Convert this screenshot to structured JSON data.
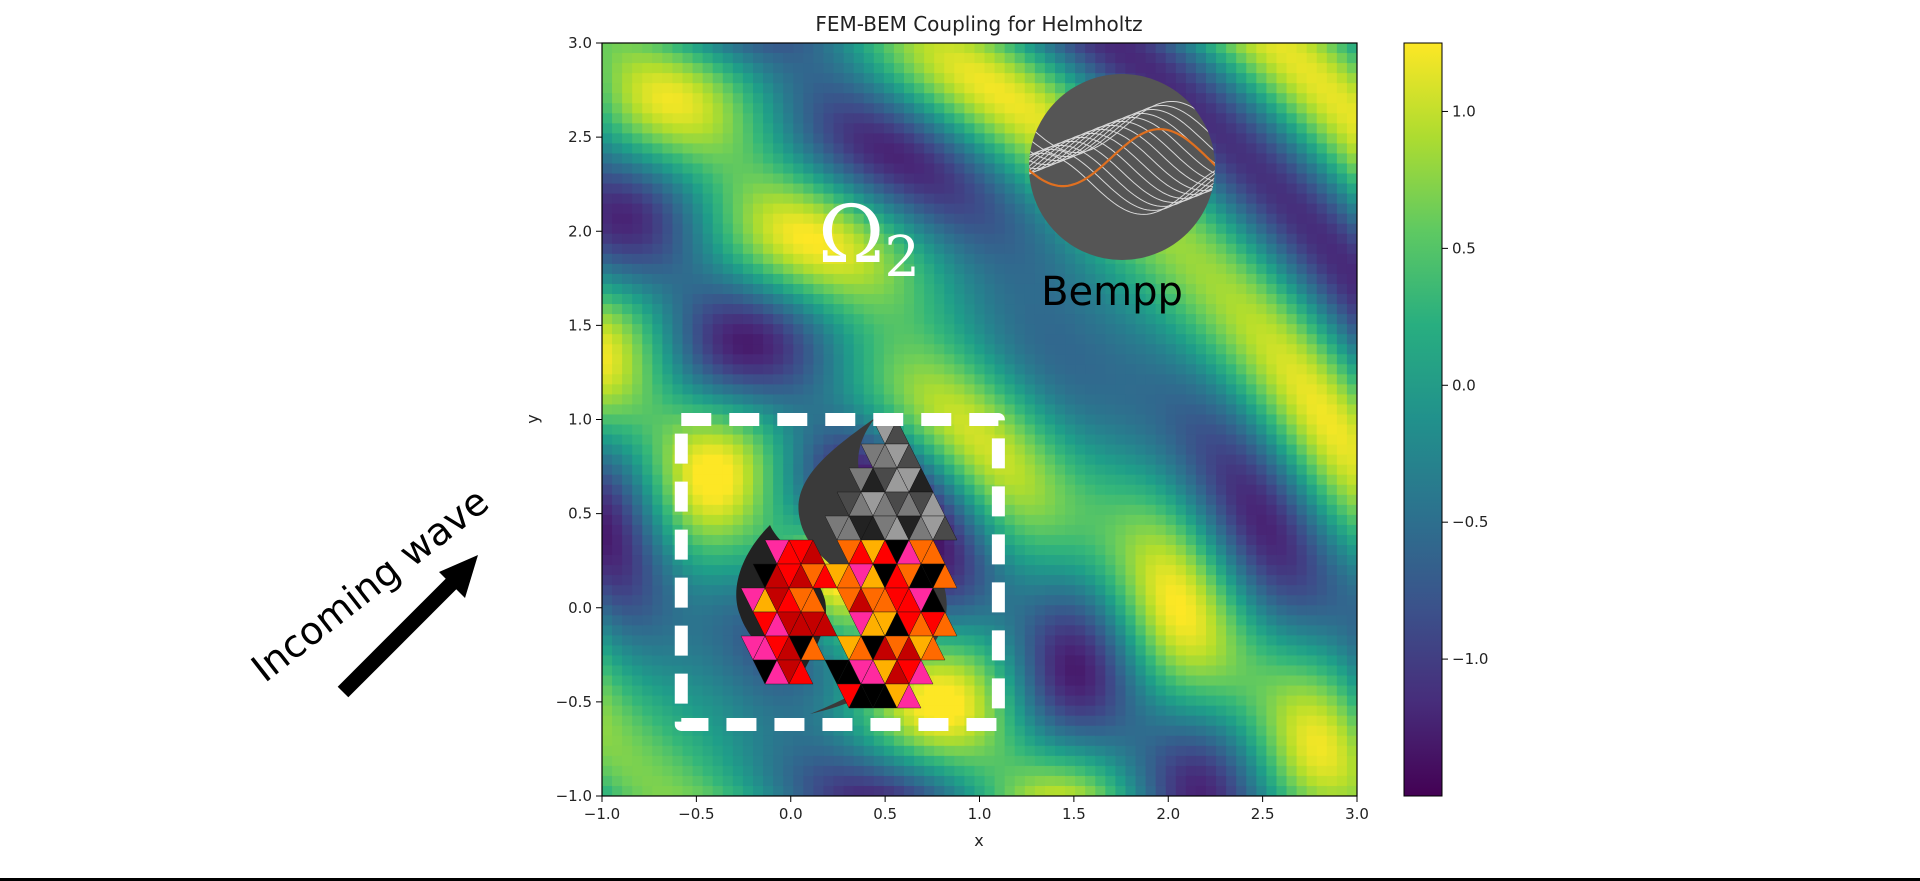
{
  "chart_data": {
    "type": "heatmap",
    "title": "FEM-BEM Coupling for Helmholtz",
    "xlabel": "x",
    "ylabel": "y",
    "xlim": [
      -1.0,
      3.0
    ],
    "ylim": [
      -1.0,
      3.0
    ],
    "xticks": [
      "−1.0",
      "−0.5",
      "0.0",
      "0.5",
      "1.0",
      "1.5",
      "2.0",
      "2.5",
      "3.0"
    ],
    "yticks": [
      "−1.0",
      "−0.5",
      "0.0",
      "0.5",
      "1.0",
      "1.5",
      "2.0",
      "2.5",
      "3.0"
    ],
    "xtick_values": [
      -1.0,
      -0.5,
      0.0,
      0.5,
      1.0,
      1.5,
      2.0,
      2.5,
      3.0
    ],
    "ytick_values": [
      -1.0,
      -0.5,
      0.0,
      0.5,
      1.0,
      1.5,
      2.0,
      2.5,
      3.0
    ],
    "colorbar": {
      "range": [
        -1.5,
        1.25
      ],
      "ticks": [
        "1.0",
        "0.5",
        "0.0",
        "−0.5",
        "−1.0"
      ],
      "tick_values": [
        1.0,
        0.5,
        0.0,
        -0.5,
        -1.0
      ],
      "colormap": "viridis"
    },
    "scatterer_box": {
      "x": [
        -0.58,
        1.1
      ],
      "y": [
        -0.62,
        1.0
      ]
    },
    "grid": false,
    "annotations": {
      "domain_symbol": "Ω",
      "domain_subscript": "2",
      "logo_text": "Bempp",
      "wave_label": "Incoming wave"
    }
  },
  "colors": {
    "box": "#ffffff",
    "arrow": "#000000",
    "logo_disc": "#555555",
    "logo_curve": "#e07020"
  }
}
